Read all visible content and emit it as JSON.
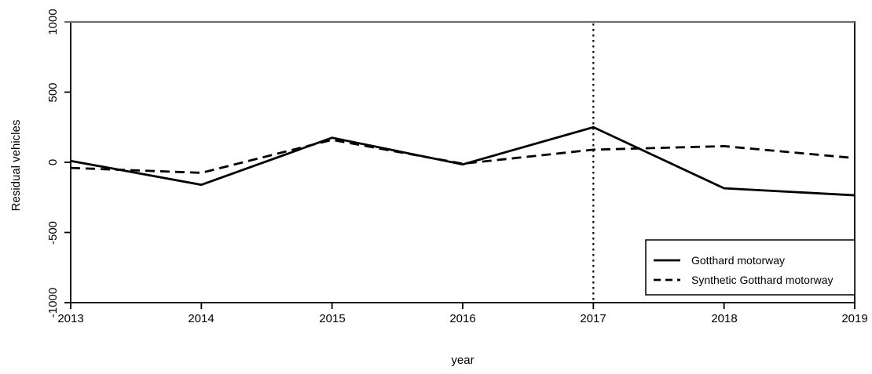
{
  "colors": {
    "background": "#ffffff",
    "axis": "#000000",
    "top_border": "#6e6e6e",
    "line": "#000000",
    "text": "#000000"
  },
  "chart_data": {
    "type": "line",
    "title": "",
    "xlabel": "year",
    "ylabel": "Residual vehicles",
    "xlim": [
      2013,
      2019
    ],
    "ylim": [
      -1000,
      1000
    ],
    "grid": false,
    "legend_position": "bottom-right",
    "x": [
      2013,
      2014,
      2015,
      2016,
      2017,
      2018,
      2019
    ],
    "x_tick_labels": [
      "2013",
      "2014",
      "2015",
      "2016",
      "2017",
      "2018",
      "2019"
    ],
    "y_tick_values": [
      1000,
      500,
      0,
      -500,
      -1000
    ],
    "y_tick_labels": [
      "1000",
      "500",
      "0",
      "-500",
      "-1000"
    ],
    "series": [
      {
        "name": "Gotthard motorway",
        "line_style": "solid",
        "color": "#000000",
        "values": [
          10,
          -160,
          175,
          -15,
          250,
          -185,
          -235
        ]
      },
      {
        "name": "Synthetic Gotthard motorway",
        "line_style": "dashed",
        "color": "#000000",
        "values": [
          -40,
          -75,
          160,
          -10,
          90,
          115,
          30
        ]
      }
    ],
    "annotations": [
      {
        "type": "vline",
        "x": 2017,
        "line_style": "dotted",
        "color": "#000000"
      }
    ]
  }
}
